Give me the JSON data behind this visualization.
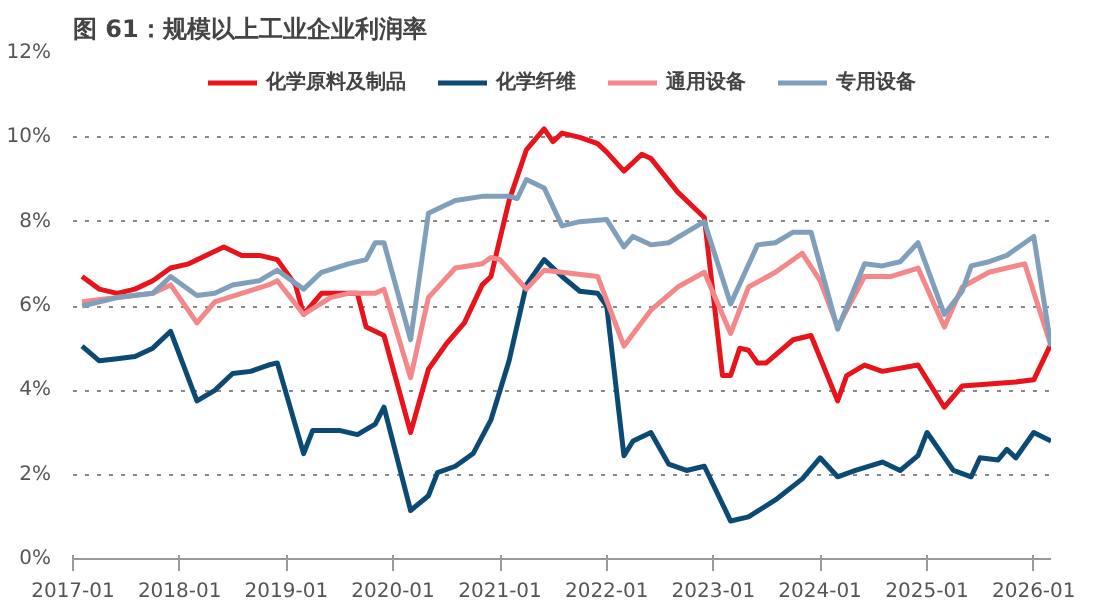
{
  "chart_data": {
    "type": "line",
    "title": "图 61：规模以上工业企业利润率",
    "xlim": [
      "2017-01",
      "2026-03"
    ],
    "ylim": [
      0,
      12
    ],
    "xticks": [
      "2017-01",
      "2018-01",
      "2019-01",
      "2020-01",
      "2021-01",
      "2022-01",
      "2023-01",
      "2024-01",
      "2025-01",
      "2026-01"
    ],
    "yticks": [
      {
        "value": 0,
        "label": "0%"
      },
      {
        "value": 2,
        "label": "2%"
      },
      {
        "value": 4,
        "label": "4%"
      },
      {
        "value": 6,
        "label": "6%"
      },
      {
        "value": 8,
        "label": "8%"
      },
      {
        "value": 10,
        "label": "10%"
      },
      {
        "value": 12,
        "label": "12%"
      }
    ],
    "grid": "y",
    "legend": "top",
    "line_style": "solid",
    "marker": "none",
    "series": [
      {
        "name": "化学原料及制品",
        "color": "#e8141b",
        "x": [
          "2017-02",
          "2017-04",
          "2017-06",
          "2017-08",
          "2017-10",
          "2017-12",
          "2018-02",
          "2018-04",
          "2018-06",
          "2018-08",
          "2018-10",
          "2018-12",
          "2019-02",
          "2019-03",
          "2019-05",
          "2019-07",
          "2019-09",
          "2019-10",
          "2019-12",
          "2020-03",
          "2020-05",
          "2020-07",
          "2020-09",
          "2020-11",
          "2020-12",
          "2021-02",
          "2021-04",
          "2021-06",
          "2021-07",
          "2021-08",
          "2021-10",
          "2021-12",
          "2022-01",
          "2022-03",
          "2022-05",
          "2022-06",
          "2022-09",
          "2022-12",
          "2023-02",
          "2023-03",
          "2023-04",
          "2023-05",
          "2023-06",
          "2023-07",
          "2023-10",
          "2023-12",
          "2024-03",
          "2024-04",
          "2024-06",
          "2024-08",
          "2024-12",
          "2025-03",
          "2025-05",
          "2025-08",
          "2025-11",
          "2026-01",
          "2026-03"
        ],
        "values": [
          6.7,
          6.4,
          6.3,
          6.4,
          6.6,
          6.9,
          7.0,
          7.2,
          7.4,
          7.2,
          7.2,
          7.1,
          6.5,
          5.8,
          6.3,
          6.3,
          6.3,
          5.5,
          5.3,
          3.0,
          4.5,
          5.1,
          5.6,
          6.5,
          6.7,
          8.5,
          9.7,
          10.2,
          9.9,
          10.1,
          10.0,
          9.85,
          9.65,
          9.2,
          9.6,
          9.5,
          8.7,
          8.1,
          4.35,
          4.35,
          5.0,
          4.95,
          4.65,
          4.65,
          5.2,
          5.3,
          3.75,
          4.35,
          4.6,
          4.45,
          4.6,
          3.6,
          4.1,
          4.15,
          4.2,
          4.25,
          5.1
        ]
      },
      {
        "name": "化学纤维",
        "color": "#0d4a73",
        "x": [
          "2017-02",
          "2017-04",
          "2017-06",
          "2017-08",
          "2017-10",
          "2017-12",
          "2018-03",
          "2018-05",
          "2018-07",
          "2018-09",
          "2018-11",
          "2018-12",
          "2019-03",
          "2019-04",
          "2019-07",
          "2019-09",
          "2019-11",
          "2019-12",
          "2020-03",
          "2020-05",
          "2020-06",
          "2020-08",
          "2020-10",
          "2020-12",
          "2021-02",
          "2021-04",
          "2021-06",
          "2021-08",
          "2021-10",
          "2021-12",
          "2022-01",
          "2022-03",
          "2022-04",
          "2022-06",
          "2022-08",
          "2022-10",
          "2022-12",
          "2023-03",
          "2023-05",
          "2023-08",
          "2023-11",
          "2024-01",
          "2024-03",
          "2024-05",
          "2024-08",
          "2024-10",
          "2024-12",
          "2025-01",
          "2025-04",
          "2025-06",
          "2025-07",
          "2025-09",
          "2025-10",
          "2025-11",
          "2026-01",
          "2026-03"
        ],
        "values": [
          5.05,
          4.7,
          4.75,
          4.8,
          5.0,
          5.4,
          3.75,
          4.0,
          4.4,
          4.45,
          4.6,
          4.65,
          2.5,
          3.05,
          3.05,
          2.95,
          3.2,
          3.6,
          1.15,
          1.5,
          2.05,
          2.2,
          2.5,
          3.3,
          4.7,
          6.5,
          7.1,
          6.7,
          6.35,
          6.3,
          6.0,
          2.45,
          2.8,
          3.0,
          2.25,
          2.1,
          2.2,
          0.9,
          1.0,
          1.4,
          1.9,
          2.4,
          1.95,
          2.1,
          2.3,
          2.1,
          2.45,
          3.0,
          2.1,
          1.95,
          2.4,
          2.35,
          2.6,
          2.4,
          3.0,
          2.8
        ]
      },
      {
        "name": "通用设备",
        "color": "#f4878a",
        "x": [
          "2017-02",
          "2017-06",
          "2017-10",
          "2017-12",
          "2018-03",
          "2018-05",
          "2018-08",
          "2018-11",
          "2018-12",
          "2019-03",
          "2019-06",
          "2019-08",
          "2019-11",
          "2019-12",
          "2020-03",
          "2020-05",
          "2020-08",
          "2020-11",
          "2020-12",
          "2021-01",
          "2021-04",
          "2021-06",
          "2021-08",
          "2021-12",
          "2022-03",
          "2022-06",
          "2022-09",
          "2022-12",
          "2023-03",
          "2023-05",
          "2023-08",
          "2023-11",
          "2024-01",
          "2024-03",
          "2024-06",
          "2024-09",
          "2024-12",
          "2025-03",
          "2025-05",
          "2025-08",
          "2025-12",
          "2026-03"
        ],
        "values": [
          6.1,
          6.2,
          6.3,
          6.5,
          5.6,
          6.1,
          6.3,
          6.5,
          6.6,
          5.8,
          6.2,
          6.3,
          6.3,
          6.4,
          4.3,
          6.2,
          6.9,
          7.0,
          7.15,
          7.1,
          6.4,
          6.85,
          6.8,
          6.7,
          5.05,
          5.9,
          6.45,
          6.8,
          5.35,
          6.45,
          6.8,
          7.25,
          6.6,
          5.5,
          6.7,
          6.7,
          6.9,
          5.5,
          6.45,
          6.8,
          7.0,
          5.05
        ]
      },
      {
        "name": "专用设备",
        "color": "#7f9fba",
        "x": [
          "2017-02",
          "2017-06",
          "2017-10",
          "2017-12",
          "2018-03",
          "2018-05",
          "2018-07",
          "2018-10",
          "2018-12",
          "2019-03",
          "2019-05",
          "2019-08",
          "2019-10",
          "2019-11",
          "2019-12",
          "2020-03",
          "2020-05",
          "2020-08",
          "2020-11",
          "2021-02",
          "2021-03",
          "2021-04",
          "2021-06",
          "2021-08",
          "2021-10",
          "2022-01",
          "2022-03",
          "2022-04",
          "2022-06",
          "2022-08",
          "2022-10",
          "2022-12",
          "2023-03",
          "2023-06",
          "2023-08",
          "2023-10",
          "2023-12",
          "2024-03",
          "2024-06",
          "2024-08",
          "2024-10",
          "2024-12",
          "2025-03",
          "2025-05",
          "2025-06",
          "2025-08",
          "2025-10",
          "2026-01",
          "2026-03"
        ],
        "values": [
          6.0,
          6.2,
          6.3,
          6.7,
          6.25,
          6.3,
          6.5,
          6.6,
          6.85,
          6.4,
          6.8,
          7.0,
          7.1,
          7.5,
          7.5,
          5.2,
          8.2,
          8.5,
          8.6,
          8.6,
          8.55,
          9.0,
          8.8,
          7.9,
          8.0,
          8.05,
          7.4,
          7.65,
          7.45,
          7.5,
          7.75,
          8.0,
          6.05,
          7.45,
          7.5,
          7.75,
          7.75,
          5.45,
          7.0,
          6.95,
          7.05,
          7.5,
          5.8,
          6.35,
          6.95,
          7.05,
          7.2,
          7.65,
          5.05
        ]
      }
    ]
  }
}
